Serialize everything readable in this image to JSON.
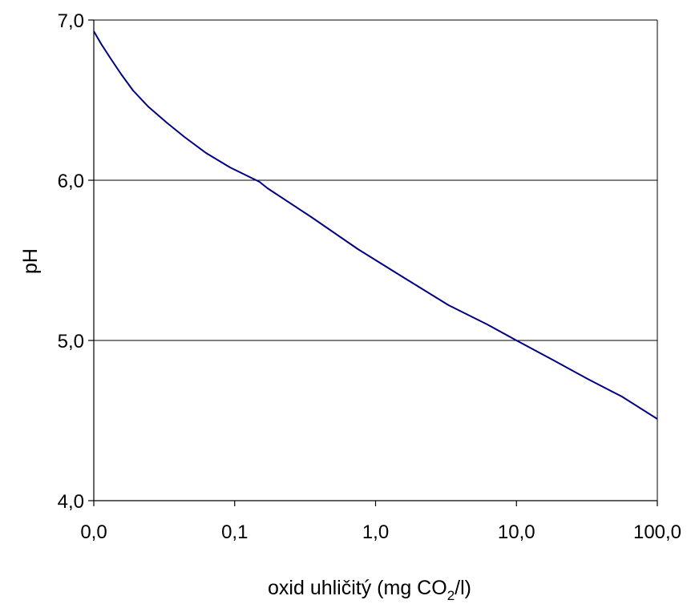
{
  "chart_data": {
    "type": "line",
    "title": "",
    "xlabel_parts": [
      "oxid uhličitý (mg CO",
      "2",
      "/l)"
    ],
    "ylabel": "pH",
    "x_scale": "log",
    "xlim": [
      0.01,
      100
    ],
    "ylim": [
      4.0,
      7.0
    ],
    "x_ticks": [
      {
        "value": 0.01,
        "label": "0,0"
      },
      {
        "value": 0.1,
        "label": "0,1"
      },
      {
        "value": 1,
        "label": "1,0"
      },
      {
        "value": 10,
        "label": "10,0"
      },
      {
        "value": 100,
        "label": "100,0"
      }
    ],
    "y_ticks": [
      {
        "value": 4.0,
        "label": "4,0"
      },
      {
        "value": 5.0,
        "label": "5,0"
      },
      {
        "value": 6.0,
        "label": "6,0"
      },
      {
        "value": 7.0,
        "label": "7,0"
      }
    ],
    "grid": "horizontal",
    "colors": {
      "line": "#000080",
      "axis": "#000000",
      "grid": "#000000"
    },
    "series": [
      {
        "x": [
          0.01,
          0.0113,
          0.0134,
          0.0157,
          0.019,
          0.0243,
          0.0329,
          0.044,
          0.0626,
          0.0928,
          0.15,
          0.171,
          0.35,
          0.75,
          1.6,
          3.3,
          6.2,
          10,
          18,
          32,
          56,
          100
        ],
        "y": [
          6.93,
          6.85,
          6.75,
          6.66,
          6.56,
          6.46,
          6.36,
          6.27,
          6.17,
          6.08,
          5.99,
          5.95,
          5.77,
          5.57,
          5.39,
          5.22,
          5.1,
          5.0,
          4.88,
          4.76,
          4.65,
          4.51
        ]
      }
    ]
  }
}
